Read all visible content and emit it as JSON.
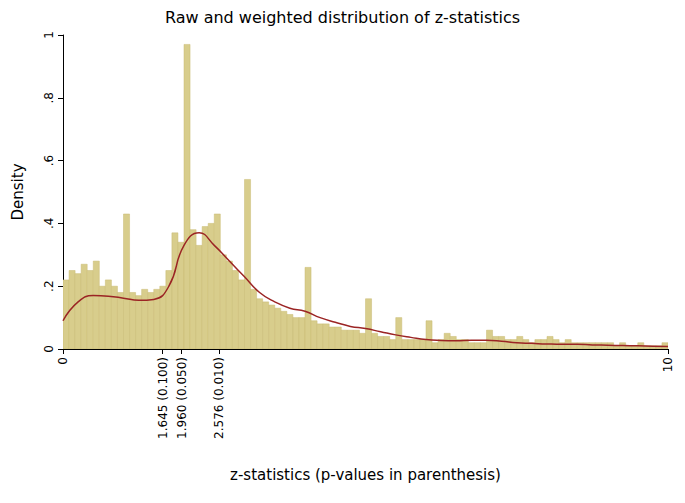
{
  "chart_data": {
    "type": "histogram",
    "title": "Raw and weighted distribution of z-statistics",
    "xlabel": "z-statistics (p-values in parenthesis)",
    "ylabel": "Density",
    "xlim": [
      0,
      10
    ],
    "xticks": [
      0,
      {
        "value": 1.645,
        "label": "1.645 (0.100)"
      },
      {
        "value": 1.96,
        "label": "1.960 (0.050)"
      },
      {
        "value": 2.576,
        "label": "2.576 (0.010)"
      },
      10
    ],
    "ylim": [
      0,
      1
    ],
    "yticks": [
      0,
      {
        "value": 0.2,
        "label": ".2"
      },
      {
        "value": 0.4,
        "label": ".4"
      },
      {
        "value": 0.6,
        "label": ".6"
      },
      {
        "value": 0.8,
        "label": ".8"
      },
      1
    ],
    "grid": false,
    "series": [
      {
        "type": "bar",
        "color": "#d8cd8c",
        "bins": [
          0,
          0.1,
          0.2,
          0.3,
          0.4,
          0.5,
          0.6,
          0.7,
          0.8,
          0.9,
          1,
          1.1,
          1.2,
          1.3,
          1.4,
          1.5,
          1.6,
          1.7,
          1.8,
          1.9,
          2,
          2.1,
          2.2,
          2.3,
          2.4,
          2.5,
          2.6,
          2.7,
          2.8,
          2.9,
          3,
          3.1,
          3.2,
          3.3,
          3.4,
          3.5,
          3.6,
          3.7,
          3.8,
          3.9,
          4,
          4.1,
          4.2,
          4.3,
          4.4,
          4.5,
          4.6,
          4.7,
          4.8,
          4.9,
          5,
          5.1,
          5.2,
          5.3,
          5.4,
          5.5,
          5.6,
          5.7,
          5.8,
          5.9,
          6,
          6.1,
          6.2,
          6.3,
          6.4,
          6.5,
          6.6,
          6.7,
          6.8,
          6.9,
          7,
          7.1,
          7.2,
          7.3,
          7.4,
          7.5,
          7.6,
          7.7,
          7.8,
          7.9,
          8,
          8.1,
          8.2,
          8.3,
          8.4,
          8.5,
          8.6,
          8.7,
          8.8,
          8.9,
          9,
          9.1,
          9.2,
          9.3,
          9.4,
          9.5,
          9.6,
          9.7,
          9.8,
          9.9,
          10
        ],
        "values": [
          0.22,
          0.25,
          0.24,
          0.27,
          0.25,
          0.28,
          0.2,
          0.22,
          0.2,
          0.18,
          0.43,
          0.18,
          0.17,
          0.19,
          0.18,
          0.19,
          0.2,
          0.25,
          0.37,
          0.34,
          0.97,
          0.38,
          0.33,
          0.39,
          0.4,
          0.43,
          0.3,
          0.28,
          0.25,
          0.22,
          0.54,
          0.19,
          0.16,
          0.15,
          0.14,
          0.13,
          0.12,
          0.11,
          0.1,
          0.1,
          0.26,
          0.09,
          0.08,
          0.08,
          0.07,
          0.07,
          0.06,
          0.06,
          0.06,
          0.05,
          0.16,
          0.05,
          0.04,
          0.04,
          0.03,
          0.1,
          0.03,
          0.03,
          0.03,
          0.03,
          0.09,
          0.02,
          0.03,
          0.05,
          0.04,
          0.03,
          0.03,
          0.02,
          0.02,
          0.02,
          0.06,
          0.04,
          0.04,
          0.03,
          0.03,
          0.04,
          0.03,
          0.02,
          0.03,
          0.03,
          0.04,
          0.03,
          0.02,
          0.03,
          0.02,
          0.02,
          0.02,
          0.02,
          0.02,
          0.02,
          0.02,
          0.01,
          0.02,
          0.01,
          0.01,
          0.02,
          0.01,
          0.01,
          0.01,
          0.02
        ]
      },
      {
        "type": "line",
        "color": "#9b2424",
        "x": [
          0,
          0.25,
          0.5,
          0.75,
          1,
          1.25,
          1.5,
          1.75,
          2,
          2.25,
          2.5,
          2.75,
          3,
          3.25,
          3.5,
          3.75,
          4,
          4.25,
          4.5,
          4.75,
          5,
          5.25,
          5.5,
          5.75,
          6,
          6.25,
          6.5,
          6.75,
          7,
          7.25,
          7.5,
          7.75,
          8,
          8.25,
          8.5,
          8.75,
          9,
          9.25,
          9.5,
          9.75,
          10
        ],
        "values": [
          0.09,
          0.15,
          0.17,
          0.168,
          0.162,
          0.155,
          0.158,
          0.2,
          0.33,
          0.37,
          0.33,
          0.28,
          0.23,
          0.18,
          0.15,
          0.13,
          0.12,
          0.1,
          0.085,
          0.072,
          0.065,
          0.055,
          0.045,
          0.037,
          0.03,
          0.027,
          0.026,
          0.028,
          0.028,
          0.025,
          0.02,
          0.018,
          0.016,
          0.015,
          0.015,
          0.013,
          0.012,
          0.011,
          0.01,
          0.009,
          0.008
        ]
      }
    ]
  }
}
